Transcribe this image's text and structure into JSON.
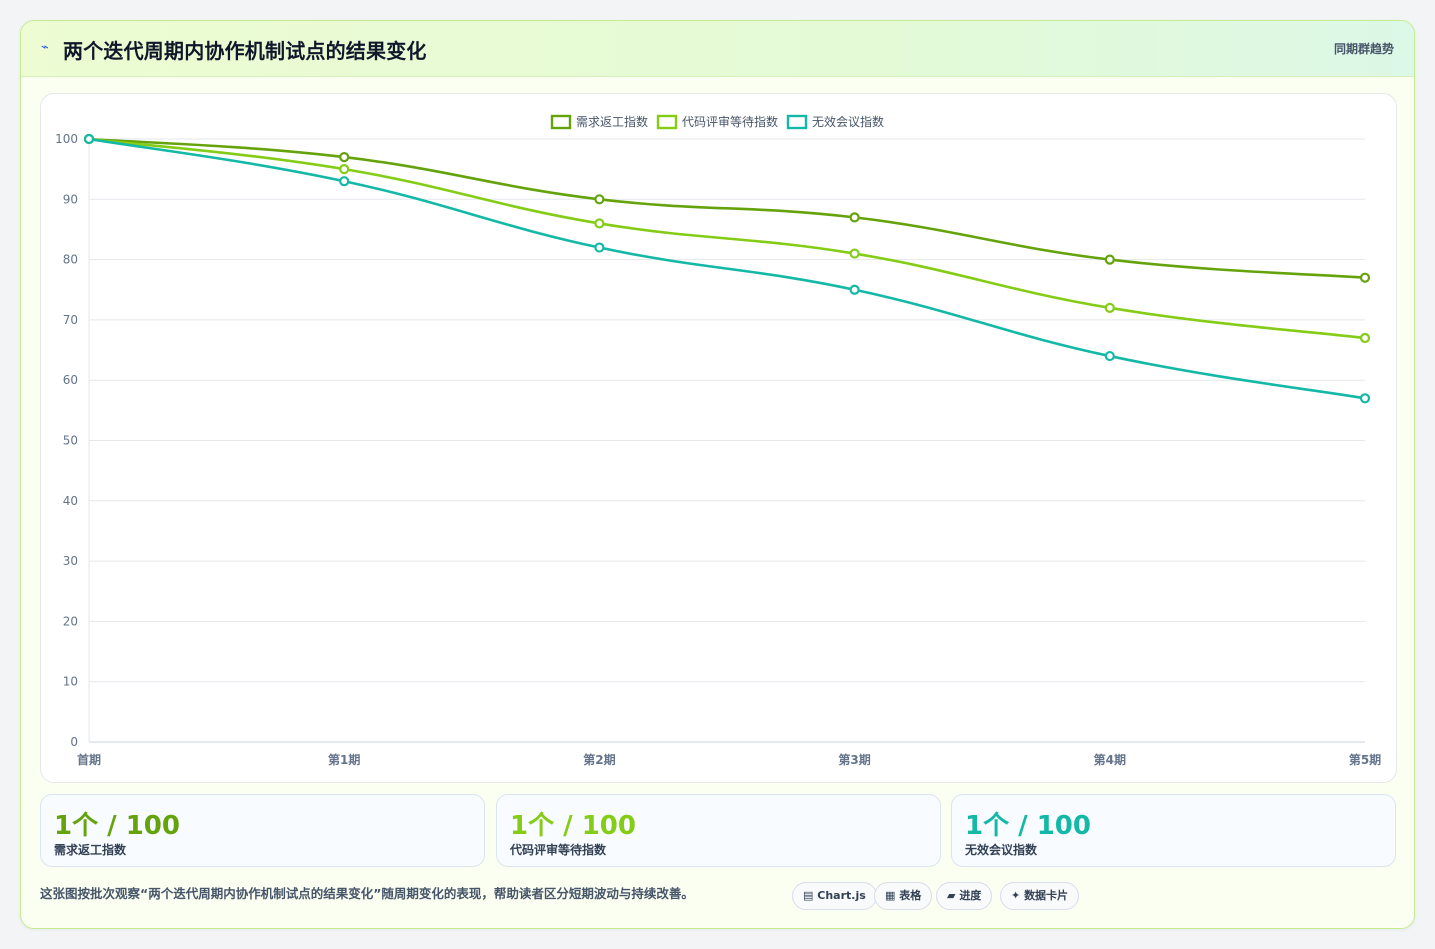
{
  "header": {
    "icon": "pulse-icon",
    "title": "两个迭代周期内协作机制试点的结果变化",
    "badge": "同期群趋势"
  },
  "chart_data": {
    "type": "line",
    "x": [
      "首期",
      "第1期",
      "第2期",
      "第3期",
      "第4期",
      "第5期"
    ],
    "ylim": [
      0,
      100
    ],
    "yticks": [
      0,
      10,
      20,
      30,
      40,
      50,
      60,
      70,
      80,
      90,
      100
    ],
    "grid": true,
    "legend_position": "top-center",
    "series": [
      {
        "name": "需求返工指数",
        "color": "#65a30d",
        "values": [
          100,
          97,
          90,
          87,
          80,
          77
        ]
      },
      {
        "name": "代码评审等待指数",
        "color": "#84cc16",
        "values": [
          100,
          95,
          86,
          81,
          72,
          67
        ]
      },
      {
        "name": "无效会议指数",
        "color": "#14b8a6",
        "values": [
          100,
          93,
          82,
          75,
          64,
          57
        ]
      }
    ]
  },
  "stats": [
    {
      "value": "1个 / 100",
      "label": "需求返工指数",
      "color": "#65a30d"
    },
    {
      "value": "1个 / 100",
      "label": "代码评审等待指数",
      "color": "#84cc16"
    },
    {
      "value": "1个 / 100",
      "label": "无效会议指数",
      "color": "#14b8a6"
    }
  ],
  "footnote": "这张图按批次观察“两个迭代周期内协作机制试点的结果变化”随周期变化的表现，帮助读者区分短期波动与持续改善。",
  "tags": [
    {
      "icon": "chart-icon",
      "glyph": "▤",
      "label": "Chart.js"
    },
    {
      "icon": "table-icon",
      "glyph": "▦",
      "label": "表格"
    },
    {
      "icon": "progress-icon",
      "glyph": "▰",
      "label": "进度"
    },
    {
      "icon": "sparkle-icon",
      "glyph": "✦",
      "label": "数据卡片"
    }
  ]
}
